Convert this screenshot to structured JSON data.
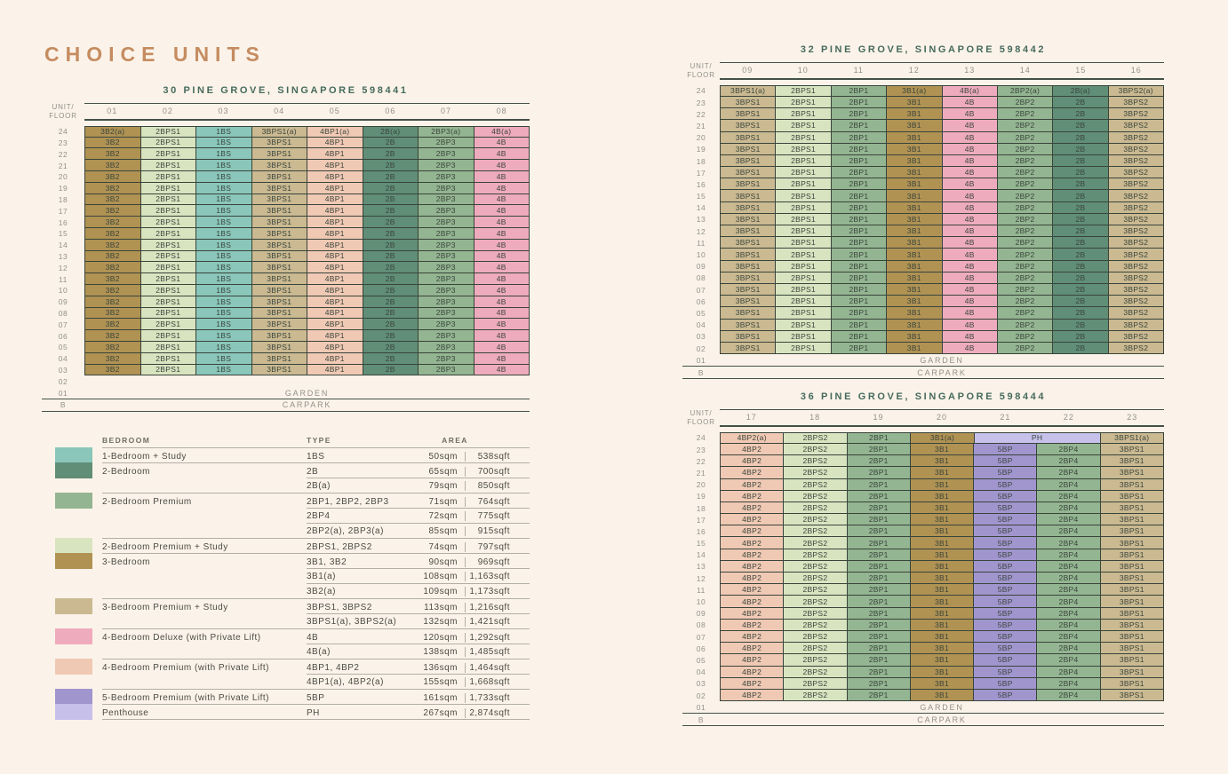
{
  "page": {
    "title": "CHOICE UNITS"
  },
  "chart_data": {
    "type": "table",
    "corner_label": [
      "UNIT/",
      "FLOOR"
    ],
    "garden_label": "GARDEN",
    "carpark_label": "CARPARK",
    "colors": {
      "1BS": "#8AC6BA",
      "2B": "#608E76",
      "2BP": "#93B591",
      "2BPS": "#D8E4C0",
      "3B": "#B09253",
      "3BPS": "#CAB991",
      "4B": "#EFABBE",
      "4BP": "#F0C9B4",
      "5BP": "#A195CE",
      "PH": "#C7C0EA"
    },
    "buildings": [
      {
        "title": "30 PINE GROVE, SINGAPORE 598441",
        "columns": [
          "01",
          "02",
          "03",
          "04",
          "05",
          "06",
          "07",
          "08"
        ],
        "rows": [
          {
            "floor": "24",
            "cells": [
              [
                "3B2(a)",
                "3B"
              ],
              [
                "2BPS1",
                "2BPS"
              ],
              [
                "1BS",
                "1BS"
              ],
              [
                "3BPS1(a)",
                "3BPS"
              ],
              [
                "4BP1(a)",
                "4BP"
              ],
              [
                "2B(a)",
                "2B"
              ],
              [
                "2BP3(a)",
                "2BP"
              ],
              [
                "4B(a)",
                "4B"
              ]
            ]
          },
          {
            "floors": [
              "23",
              "22",
              "21",
              "20",
              "19",
              "18",
              "17",
              "16",
              "15",
              "14",
              "13",
              "12",
              "11",
              "10",
              "09",
              "08",
              "07",
              "06",
              "05",
              "04",
              "03"
            ],
            "cells": [
              [
                "3B2",
                "3B"
              ],
              [
                "2BPS1",
                "2BPS"
              ],
              [
                "1BS",
                "1BS"
              ],
              [
                "3BPS1",
                "3BPS"
              ],
              [
                "4BP1",
                "4BP"
              ],
              [
                "2B",
                "2B"
              ],
              [
                "2BP3",
                "2BP"
              ],
              [
                "4B",
                "4B"
              ]
            ]
          },
          {
            "floor": "02",
            "empty": true
          },
          {
            "floor": "01",
            "label": "GARDEN"
          },
          {
            "floor": "B",
            "label": "CARPARK"
          }
        ]
      },
      {
        "title": "32 PINE GROVE, SINGAPORE 598442",
        "columns": [
          "09",
          "10",
          "11",
          "12",
          "13",
          "14",
          "15",
          "16"
        ],
        "rows": [
          {
            "floor": "24",
            "cells": [
              [
                "3BPS1(a)",
                "3BPS"
              ],
              [
                "2BPS1",
                "2BPS"
              ],
              [
                "2BP1",
                "2BP"
              ],
              [
                "3B1(a)",
                "3B"
              ],
              [
                "4B(a)",
                "4B"
              ],
              [
                "2BP2(a)",
                "2BP"
              ],
              [
                "2B(a)",
                "2B"
              ],
              [
                "3BPS2(a)",
                "3BPS"
              ]
            ]
          },
          {
            "floors": [
              "23",
              "22",
              "21",
              "20",
              "19",
              "18",
              "17",
              "16",
              "15",
              "14",
              "13",
              "12",
              "11",
              "10",
              "09",
              "08",
              "07",
              "06",
              "05",
              "04",
              "03",
              "02"
            ],
            "cells": [
              [
                "3BPS1",
                "3BPS"
              ],
              [
                "2BPS1",
                "2BPS"
              ],
              [
                "2BP1",
                "2BP"
              ],
              [
                "3B1",
                "3B"
              ],
              [
                "4B",
                "4B"
              ],
              [
                "2BP2",
                "2BP"
              ],
              [
                "2B",
                "2B"
              ],
              [
                "3BPS2",
                "3BPS"
              ]
            ]
          },
          {
            "floor": "01",
            "label": "GARDEN"
          },
          {
            "floor": "B",
            "label": "CARPARK"
          }
        ]
      },
      {
        "title": "36 PINE GROVE, SINGAPORE 598444",
        "columns": [
          "17",
          "18",
          "19",
          "20",
          "21",
          "22",
          "23"
        ],
        "rows": [
          {
            "floor": "24",
            "cells": [
              [
                "4BP2(a)",
                "4BP"
              ],
              [
                "2BPS2",
                "2BPS"
              ],
              [
                "2BP1",
                "2BP"
              ],
              [
                "3B1(a)",
                "3B"
              ],
              [
                "PH",
                "PH",
                2
              ],
              [
                "3BPS1(a)",
                "3BPS"
              ]
            ]
          },
          {
            "floors": [
              "23",
              "22",
              "21",
              "20",
              "19",
              "18",
              "17",
              "16",
              "15",
              "14",
              "13",
              "12",
              "11",
              "10",
              "09",
              "08",
              "07",
              "06",
              "05",
              "04",
              "03",
              "02"
            ],
            "cells": [
              [
                "4BP2",
                "4BP"
              ],
              [
                "2BPS2",
                "2BPS"
              ],
              [
                "2BP1",
                "2BP"
              ],
              [
                "3B1",
                "3B"
              ],
              [
                "5BP",
                "5BP"
              ],
              [
                "2BP4",
                "2BP"
              ],
              [
                "3BPS1",
                "3BPS"
              ]
            ]
          },
          {
            "floor": "01",
            "label": "GARDEN"
          },
          {
            "floor": "B",
            "label": "CARPARK"
          }
        ]
      }
    ],
    "legend": {
      "headers": {
        "bedroom": "BEDROOM",
        "type": "TYPE",
        "area": "AREA"
      },
      "rows": [
        {
          "swatch": "1BS",
          "bedroom": "1-Bedroom + Study",
          "type": "1BS",
          "sqm": "50sqm",
          "sqft": "538sqft",
          "group": true
        },
        {
          "swatch": "2B",
          "bedroom": "2-Bedroom",
          "type": "2B",
          "sqm": "65sqm",
          "sqft": "700sqft",
          "group": true
        },
        {
          "type": "2B(a)",
          "sqm": "79sqm",
          "sqft": "850sqft"
        },
        {
          "swatch": "2BP",
          "bedroom": "2-Bedroom Premium",
          "type": "2BP1, 2BP2, 2BP3",
          "sqm": "71sqm",
          "sqft": "764sqft",
          "group": true
        },
        {
          "type": "2BP4",
          "sqm": "72sqm",
          "sqft": "775sqft"
        },
        {
          "type": "2BP2(a), 2BP3(a)",
          "sqm": "85sqm",
          "sqft": "915sqft"
        },
        {
          "swatch": "2BPS",
          "bedroom": "2-Bedroom Premium + Study",
          "type": "2BPS1, 2BPS2",
          "sqm": "74sqm",
          "sqft": "797sqft",
          "group": true
        },
        {
          "swatch": "3B",
          "bedroom": "3-Bedroom",
          "type": "3B1, 3B2",
          "sqm": "90sqm",
          "sqft": "969sqft",
          "group": true
        },
        {
          "type": "3B1(a)",
          "sqm": "108sqm",
          "sqft": "1,163sqft"
        },
        {
          "type": "3B2(a)",
          "sqm": "109sqm",
          "sqft": "1,173sqft"
        },
        {
          "swatch": "3BPS",
          "bedroom": "3-Bedroom Premium + Study",
          "type": "3BPS1, 3BPS2",
          "sqm": "113sqm",
          "sqft": "1,216sqft",
          "group": true
        },
        {
          "type": "3BPS1(a), 3BPS2(a)",
          "sqm": "132sqm",
          "sqft": "1,421sqft"
        },
        {
          "swatch": "4B",
          "bedroom": "4-Bedroom Deluxe (with Private Lift)",
          "type": "4B",
          "sqm": "120sqm",
          "sqft": "1,292sqft",
          "group": true
        },
        {
          "type": "4B(a)",
          "sqm": "138sqm",
          "sqft": "1,485sqft"
        },
        {
          "swatch": "4BP",
          "bedroom": "4-Bedroom Premium (with Private Lift)",
          "type": "4BP1, 4BP2",
          "sqm": "136sqm",
          "sqft": "1,464sqft",
          "group": true
        },
        {
          "type": "4BP1(a), 4BP2(a)",
          "sqm": "155sqm",
          "sqft": "1,668sqft"
        },
        {
          "swatch": "5BP",
          "bedroom": "5-Bedroom Premium (with Private Lift)",
          "type": "5BP",
          "sqm": "161sqm",
          "sqft": "1,733sqft",
          "group": true
        },
        {
          "swatch": "PH",
          "bedroom": "Penthouse",
          "type": "PH",
          "sqm": "267sqm",
          "sqft": "2,874sqft",
          "group": true
        }
      ]
    }
  }
}
